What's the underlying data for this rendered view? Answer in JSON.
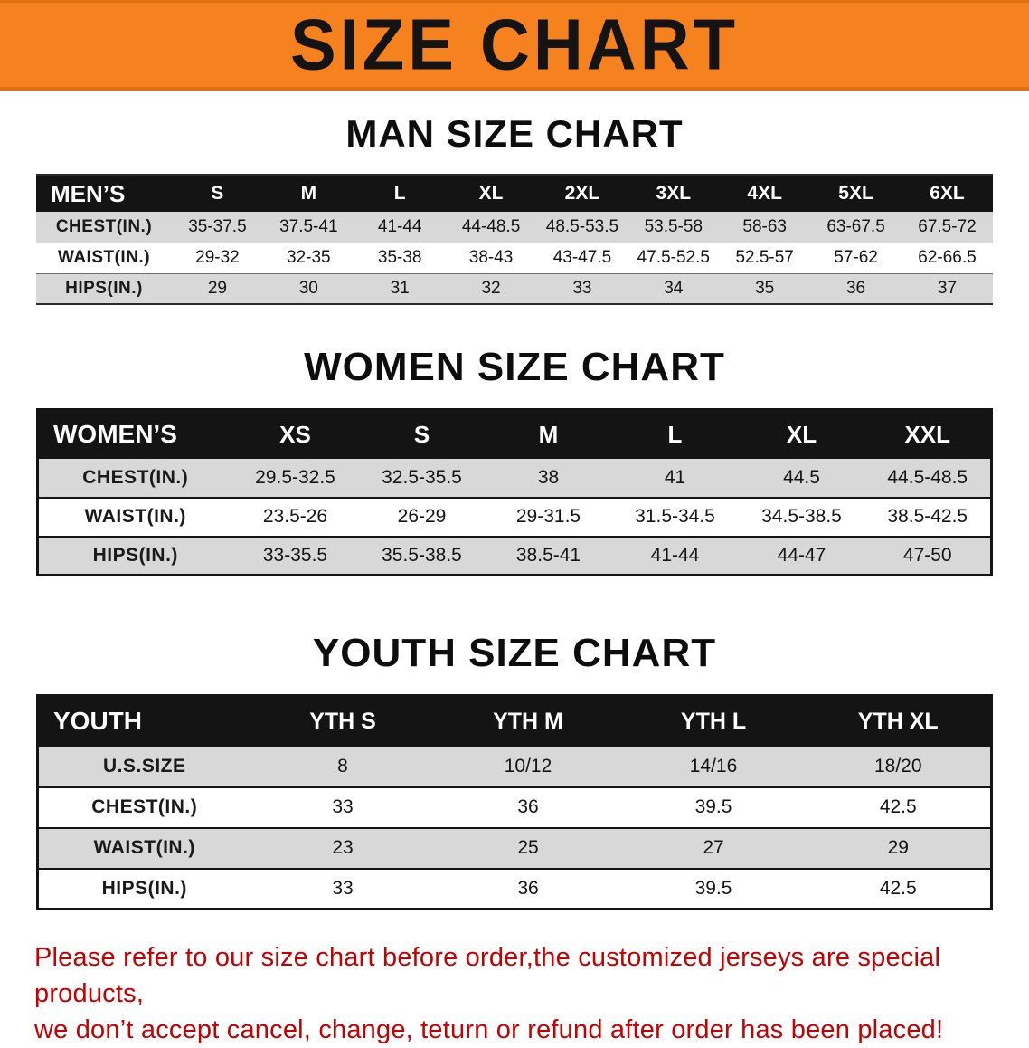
{
  "banner": {
    "title": "SIZE CHART"
  },
  "colors": {
    "banner_bg": "#f6821f",
    "table_header_bg": "#141414",
    "shaded_row_bg": "#d8d8d8",
    "footer_text": "#c40000"
  },
  "sections": [
    {
      "heading": "MAN SIZE CHART",
      "table": {
        "header": [
          "MEN’S",
          "S",
          "M",
          "L",
          "XL",
          "2XL",
          "3XL",
          "4XL",
          "5XL",
          "6XL"
        ],
        "rows": [
          {
            "label": "CHEST(IN.)",
            "values": [
              "35-37.5",
              "37.5-41",
              "41-44",
              "44-48.5",
              "48.5-53.5",
              "53.5-58",
              "58-63",
              "63-67.5",
              "67.5-72"
            ]
          },
          {
            "label": "WAIST(IN.)",
            "values": [
              "29-32",
              "32-35",
              "35-38",
              "38-43",
              "43-47.5",
              "47.5-52.5",
              "52.5-57",
              "57-62",
              "62-66.5"
            ]
          },
          {
            "label": "HIPS(IN.)",
            "values": [
              "29",
              "30",
              "31",
              "32",
              "33",
              "34",
              "35",
              "36",
              "37"
            ]
          }
        ]
      }
    },
    {
      "heading": "WOMEN SIZE CHART",
      "table": {
        "header": [
          "WOMEN’S",
          "XS",
          "S",
          "M",
          "L",
          "XL",
          "XXL"
        ],
        "rows": [
          {
            "label": "CHEST(IN.)",
            "values": [
              "29.5-32.5",
              "32.5-35.5",
              "38",
              "41",
              "44.5",
              "44.5-48.5"
            ]
          },
          {
            "label": "WAIST(IN.)",
            "values": [
              "23.5-26",
              "26-29",
              "29-31.5",
              "31.5-34.5",
              "34.5-38.5",
              "38.5-42.5"
            ]
          },
          {
            "label": "HIPS(IN.)",
            "values": [
              "33-35.5",
              "35.5-38.5",
              "38.5-41",
              "41-44",
              "44-47",
              "47-50"
            ]
          }
        ]
      }
    },
    {
      "heading": "YOUTH SIZE CHART",
      "table": {
        "header": [
          "YOUTH",
          "YTH S",
          "YTH M",
          "YTH L",
          "YTH XL"
        ],
        "rows": [
          {
            "label": "U.S.SIZE",
            "values": [
              "8",
              "10/12",
              "14/16",
              "18/20"
            ]
          },
          {
            "label": "CHEST(IN.)",
            "values": [
              "33",
              "36",
              "39.5",
              "42.5"
            ]
          },
          {
            "label": "WAIST(IN.)",
            "values": [
              "23",
              "25",
              "27",
              "29"
            ]
          },
          {
            "label": "HIPS(IN.)",
            "values": [
              "33",
              "36",
              "39.5",
              "42.5"
            ]
          }
        ]
      }
    }
  ],
  "footer": {
    "line1": "Please refer to our size chart before order,the customized jerseys are special products,",
    "line2": "we don’t accept cancel, change, teturn or refund after order has been placed!"
  }
}
